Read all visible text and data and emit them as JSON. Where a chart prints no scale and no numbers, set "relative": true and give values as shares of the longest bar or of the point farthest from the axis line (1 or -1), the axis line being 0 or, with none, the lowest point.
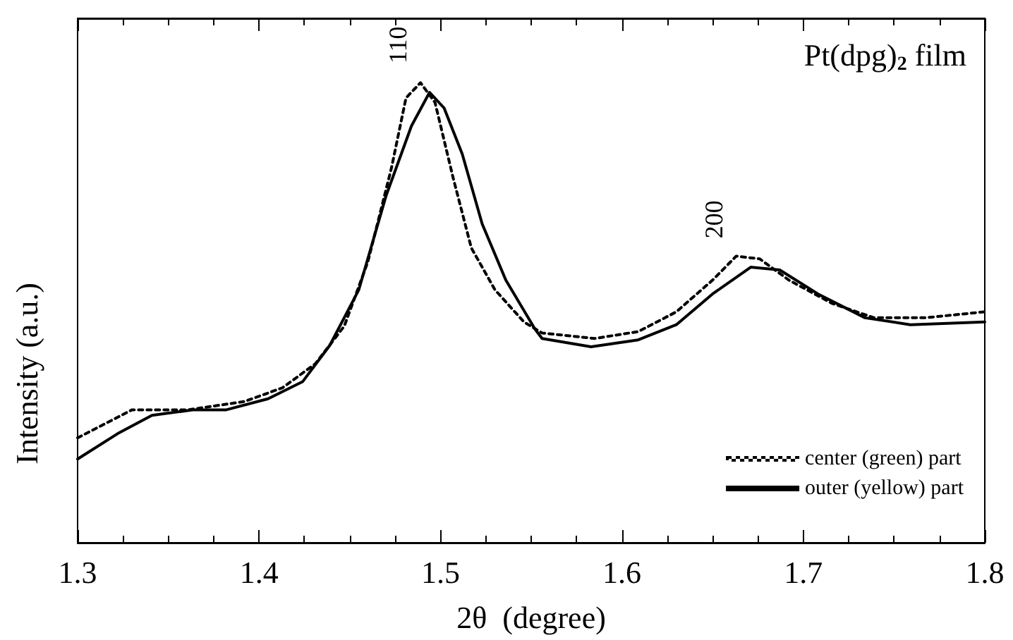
{
  "chart_data": {
    "type": "line",
    "title": "Pt(dpg)$_{2}$ film",
    "xlabel": "2θ  (degree)",
    "ylabel": "Intensity (a.u.)",
    "relative": true,
    "xlim": [
      1.3,
      1.8
    ],
    "xticks": [
      1.3,
      1.4,
      1.5,
      1.6,
      1.7,
      1.8
    ],
    "annotations": [
      {
        "text": "110",
        "x": 1.489,
        "y": 1.0
      },
      {
        "text": "200",
        "x": 1.663,
        "y": 0.623
      }
    ],
    "legend": "bottom right",
    "grid": false,
    "marker": "none",
    "series": [
      {
        "name": "center (green) part",
        "color": "#000000",
        "line_style": "dotted",
        "x": [
          1.3,
          1.33,
          1.361,
          1.392,
          1.413,
          1.431,
          1.447,
          1.46,
          1.473,
          1.481,
          1.489,
          1.497,
          1.507,
          1.517,
          1.53,
          1.546,
          1.556,
          1.585,
          1.609,
          1.63,
          1.65,
          1.663,
          1.676,
          1.692,
          1.716,
          1.739,
          1.767,
          1.8
        ],
        "values": [
          0.228,
          0.289,
          0.289,
          0.307,
          0.337,
          0.389,
          0.471,
          0.611,
          0.815,
          0.967,
          1.0,
          0.957,
          0.793,
          0.641,
          0.55,
          0.48,
          0.456,
          0.444,
          0.459,
          0.502,
          0.571,
          0.623,
          0.617,
          0.571,
          0.52,
          0.489,
          0.489,
          0.502
        ]
      },
      {
        "name": "outer (yellow) part",
        "color": "#000000",
        "line_style": "solid",
        "x": [
          1.3,
          1.322,
          1.341,
          1.364,
          1.382,
          1.405,
          1.424,
          1.439,
          1.455,
          1.47,
          1.484,
          1.494,
          1.502,
          1.512,
          1.523,
          1.536,
          1.552,
          1.556,
          1.583,
          1.609,
          1.63,
          1.65,
          1.671,
          1.687,
          1.708,
          1.734,
          1.759,
          1.8
        ],
        "values": [
          0.182,
          0.237,
          0.277,
          0.289,
          0.289,
          0.313,
          0.35,
          0.429,
          0.55,
          0.754,
          0.906,
          0.979,
          0.945,
          0.845,
          0.693,
          0.571,
          0.465,
          0.444,
          0.426,
          0.441,
          0.474,
          0.541,
          0.599,
          0.593,
          0.541,
          0.489,
          0.474,
          0.48
        ]
      }
    ]
  }
}
